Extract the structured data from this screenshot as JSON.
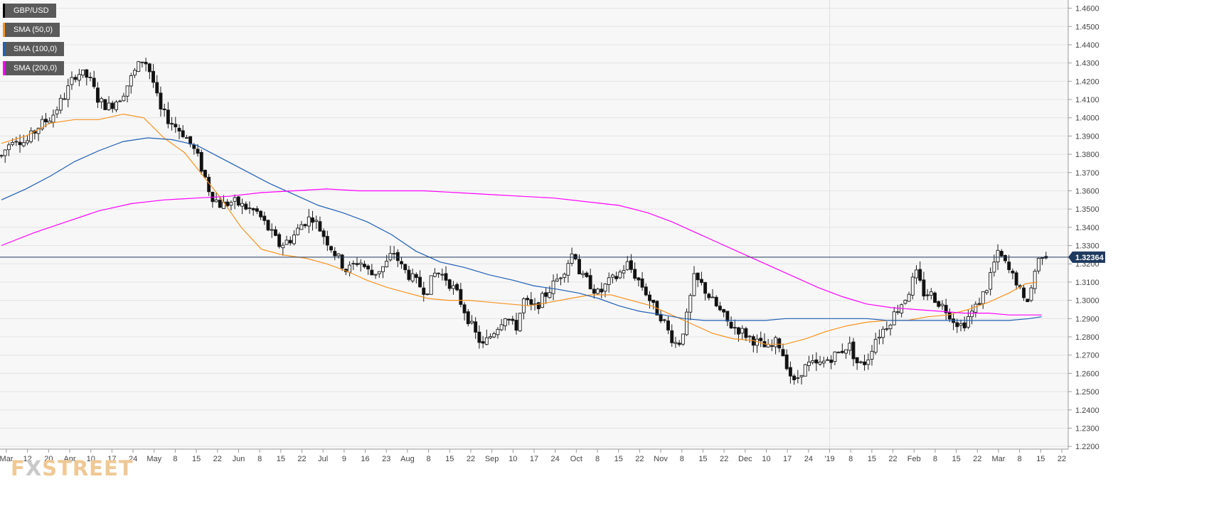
{
  "chart_data": {
    "type": "candlestick",
    "symbol": "GBP/USD",
    "ylim": [
      1.2185,
      1.4645
    ],
    "yticks": [
      "1.2200",
      "1.2300",
      "1.2400",
      "1.2500",
      "1.2600",
      "1.2700",
      "1.2800",
      "1.2900",
      "1.3000",
      "1.3100",
      "1.3200",
      "1.3300",
      "1.3400",
      "1.3500",
      "1.3600",
      "1.3700",
      "1.3800",
      "1.3900",
      "1.4000",
      "1.4100",
      "1.4200",
      "1.4300",
      "1.4400",
      "1.4500",
      "1.4600"
    ],
    "xticks": [
      "Mar",
      "12",
      "20",
      "Apr",
      "10",
      "17",
      "24",
      "May",
      "8",
      "15",
      "22",
      "Jun",
      "8",
      "15",
      "22",
      "Jul",
      "9",
      "16",
      "23",
      "Aug",
      "8",
      "15",
      "22",
      "Sep",
      "10",
      "17",
      "24",
      "Oct",
      "8",
      "15",
      "22",
      "Nov",
      "8",
      "15",
      "22",
      "Dec",
      "10",
      "17",
      "24",
      "'19",
      "8",
      "15",
      "22",
      "Feb",
      "8",
      "15",
      "22",
      "Mar",
      "8",
      "15",
      "22"
    ],
    "current_price": 1.32364,
    "current_price_label": "1.32364",
    "close_path": [
      [
        0,
        1.379
      ],
      [
        6,
        1.39
      ],
      [
        12,
        1.386
      ],
      [
        18,
        1.395
      ],
      [
        25,
        1.401
      ],
      [
        31,
        1.412
      ],
      [
        37,
        1.425
      ],
      [
        43,
        1.422
      ],
      [
        48,
        1.409
      ],
      [
        53,
        1.406
      ],
      [
        59,
        1.412
      ],
      [
        65,
        1.424
      ],
      [
        70,
        1.433
      ],
      [
        74,
        1.423
      ],
      [
        78,
        1.404
      ],
      [
        84,
        1.397
      ],
      [
        90,
        1.391
      ],
      [
        96,
        1.38
      ],
      [
        100,
        1.368
      ],
      [
        103,
        1.358
      ],
      [
        108,
        1.352
      ],
      [
        114,
        1.354
      ],
      [
        120,
        1.351
      ],
      [
        126,
        1.348
      ],
      [
        132,
        1.338
      ],
      [
        137,
        1.33
      ],
      [
        143,
        1.334
      ],
      [
        148,
        1.342
      ],
      [
        153,
        1.346
      ],
      [
        159,
        1.335
      ],
      [
        164,
        1.326
      ],
      [
        170,
        1.316
      ],
      [
        176,
        1.322
      ],
      [
        182,
        1.314
      ],
      [
        189,
        1.319
      ],
      [
        193,
        1.327
      ],
      [
        197,
        1.318
      ],
      [
        203,
        1.311
      ],
      [
        209,
        1.305
      ],
      [
        214,
        1.316
      ],
      [
        219,
        1.312
      ],
      [
        224,
        1.304
      ],
      [
        229,
        1.292
      ],
      [
        233,
        1.282
      ],
      [
        237,
        1.275
      ],
      [
        243,
        1.284
      ],
      [
        248,
        1.292
      ],
      [
        253,
        1.284
      ],
      [
        257,
        1.3
      ],
      [
        262,
        1.295
      ],
      [
        267,
        1.302
      ],
      [
        272,
        1.309
      ],
      [
        277,
        1.317
      ],
      [
        282,
        1.328
      ],
      [
        285,
        1.313
      ],
      [
        289,
        1.31
      ],
      [
        294,
        1.303
      ],
      [
        298,
        1.309
      ],
      [
        303,
        1.313
      ],
      [
        308,
        1.32
      ],
      [
        313,
        1.312
      ],
      [
        317,
        1.305
      ],
      [
        321,
        1.296
      ],
      [
        325,
        1.291
      ],
      [
        329,
        1.281
      ],
      [
        333,
        1.275
      ],
      [
        337,
        1.289
      ],
      [
        341,
        1.312
      ],
      [
        345,
        1.308
      ],
      [
        349,
        1.301
      ],
      [
        353,
        1.295
      ],
      [
        358,
        1.287
      ],
      [
        363,
        1.284
      ],
      [
        368,
        1.28
      ],
      [
        373,
        1.276
      ],
      [
        378,
        1.273
      ],
      [
        382,
        1.278
      ],
      [
        386,
        1.267
      ],
      [
        390,
        1.254
      ],
      [
        394,
        1.262
      ],
      [
        398,
        1.265
      ],
      [
        402,
        1.264
      ],
      [
        407,
        1.268
      ],
      [
        412,
        1.271
      ],
      [
        417,
        1.276
      ],
      [
        422,
        1.264
      ],
      [
        426,
        1.267
      ],
      [
        430,
        1.279
      ],
      [
        434,
        1.284
      ],
      [
        438,
        1.29
      ],
      [
        442,
        1.297
      ],
      [
        446,
        1.303
      ],
      [
        450,
        1.315
      ],
      [
        454,
        1.304
      ],
      [
        458,
        1.303
      ],
      [
        462,
        1.298
      ],
      [
        466,
        1.294
      ],
      [
        469,
        1.289
      ],
      [
        473,
        1.286
      ],
      [
        476,
        1.291
      ],
      [
        479,
        1.295
      ],
      [
        482,
        1.301
      ],
      [
        485,
        1.307
      ],
      [
        488,
        1.319
      ],
      [
        491,
        1.326
      ],
      [
        494,
        1.32
      ],
      [
        497,
        1.314
      ],
      [
        500,
        1.31
      ],
      [
        503,
        1.299
      ],
      [
        506,
        1.302
      ],
      [
        509,
        1.318
      ],
      [
        512,
        1.326
      ],
      [
        515,
        1.325
      ]
    ],
    "series": [
      {
        "name": "SMA (50,0)",
        "period": 50,
        "color": "#f7931e"
      },
      {
        "name": "SMA (100,0)",
        "period": 100,
        "color": "#1f5fb4"
      },
      {
        "name": "SMA (200,0)",
        "period": 200,
        "color": "#ff00ff"
      }
    ],
    "sma_paths": {
      "SMA (50,0)": [
        [
          0,
          1.386
        ],
        [
          12,
          1.39
        ],
        [
          24,
          1.397
        ],
        [
          36,
          1.399
        ],
        [
          48,
          1.399
        ],
        [
          60,
          1.402
        ],
        [
          70,
          1.4
        ],
        [
          80,
          1.389
        ],
        [
          90,
          1.381
        ],
        [
          98,
          1.37
        ],
        [
          108,
          1.356
        ],
        [
          118,
          1.34
        ],
        [
          128,
          1.328
        ],
        [
          138,
          1.325
        ],
        [
          150,
          1.323
        ],
        [
          160,
          1.32
        ],
        [
          170,
          1.316
        ],
        [
          180,
          1.311
        ],
        [
          190,
          1.307
        ],
        [
          200,
          1.304
        ],
        [
          210,
          1.301
        ],
        [
          220,
          1.3
        ],
        [
          230,
          1.3
        ],
        [
          240,
          1.299
        ],
        [
          250,
          1.298
        ],
        [
          260,
          1.297
        ],
        [
          270,
          1.299
        ],
        [
          280,
          1.301
        ],
        [
          290,
          1.303
        ],
        [
          300,
          1.303
        ],
        [
          310,
          1.3
        ],
        [
          320,
          1.297
        ],
        [
          330,
          1.292
        ],
        [
          340,
          1.287
        ],
        [
          350,
          1.282
        ],
        [
          360,
          1.279
        ],
        [
          370,
          1.278
        ],
        [
          376,
          1.276
        ],
        [
          386,
          1.276
        ],
        [
          396,
          1.279
        ],
        [
          406,
          1.283
        ],
        [
          416,
          1.286
        ],
        [
          426,
          1.288
        ],
        [
          436,
          1.289
        ],
        [
          446,
          1.289
        ],
        [
          456,
          1.291
        ],
        [
          466,
          1.292
        ],
        [
          476,
          1.295
        ],
        [
          486,
          1.299
        ],
        [
          496,
          1.304
        ],
        [
          504,
          1.309
        ],
        [
          510,
          1.31
        ]
      ],
      "SMA (100,0)": [
        [
          0,
          1.355
        ],
        [
          12,
          1.361
        ],
        [
          24,
          1.368
        ],
        [
          36,
          1.376
        ],
        [
          48,
          1.382
        ],
        [
          60,
          1.387
        ],
        [
          72,
          1.389
        ],
        [
          84,
          1.388
        ],
        [
          96,
          1.385
        ],
        [
          108,
          1.378
        ],
        [
          120,
          1.371
        ],
        [
          132,
          1.364
        ],
        [
          144,
          1.358
        ],
        [
          156,
          1.352
        ],
        [
          168,
          1.348
        ],
        [
          180,
          1.343
        ],
        [
          192,
          1.336
        ],
        [
          204,
          1.327
        ],
        [
          216,
          1.321
        ],
        [
          228,
          1.318
        ],
        [
          240,
          1.314
        ],
        [
          252,
          1.311
        ],
        [
          262,
          1.308
        ],
        [
          274,
          1.306
        ],
        [
          284,
          1.304
        ],
        [
          294,
          1.301
        ],
        [
          304,
          1.297
        ],
        [
          314,
          1.294
        ],
        [
          326,
          1.292
        ],
        [
          336,
          1.29
        ],
        [
          346,
          1.289
        ],
        [
          356,
          1.289
        ],
        [
          366,
          1.289
        ],
        [
          376,
          1.289
        ],
        [
          386,
          1.29
        ],
        [
          396,
          1.29
        ],
        [
          406,
          1.29
        ],
        [
          416,
          1.29
        ],
        [
          426,
          1.29
        ],
        [
          436,
          1.289
        ],
        [
          446,
          1.289
        ],
        [
          456,
          1.289
        ],
        [
          466,
          1.289
        ],
        [
          476,
          1.289
        ],
        [
          486,
          1.289
        ],
        [
          496,
          1.289
        ],
        [
          506,
          1.29
        ],
        [
          512,
          1.291
        ]
      ],
      "SMA (200,0)": [
        [
          0,
          1.33
        ],
        [
          16,
          1.337
        ],
        [
          32,
          1.343
        ],
        [
          48,
          1.349
        ],
        [
          64,
          1.353
        ],
        [
          80,
          1.355
        ],
        [
          96,
          1.356
        ],
        [
          112,
          1.357
        ],
        [
          128,
          1.359
        ],
        [
          144,
          1.36
        ],
        [
          160,
          1.361
        ],
        [
          176,
          1.36
        ],
        [
          192,
          1.36
        ],
        [
          208,
          1.36
        ],
        [
          224,
          1.359
        ],
        [
          240,
          1.358
        ],
        [
          256,
          1.357
        ],
        [
          272,
          1.356
        ],
        [
          288,
          1.354
        ],
        [
          304,
          1.352
        ],
        [
          318,
          1.348
        ],
        [
          330,
          1.343
        ],
        [
          342,
          1.337
        ],
        [
          354,
          1.331
        ],
        [
          366,
          1.325
        ],
        [
          378,
          1.319
        ],
        [
          390,
          1.313
        ],
        [
          402,
          1.307
        ],
        [
          414,
          1.302
        ],
        [
          426,
          1.298
        ],
        [
          438,
          1.296
        ],
        [
          450,
          1.295
        ],
        [
          462,
          1.294
        ],
        [
          474,
          1.293
        ],
        [
          486,
          1.293
        ],
        [
          496,
          1.292
        ],
        [
          506,
          1.292
        ],
        [
          512,
          1.292
        ]
      ]
    },
    "grid": true,
    "legend_position": "top-left",
    "price_axis_position": "right"
  },
  "legend": [
    "GBP/USD",
    "SMA (50,0)",
    "SMA (100,0)",
    "SMA (200,0)"
  ],
  "legend_colors": [
    "#000000",
    "#f7931e",
    "#1f5fb4",
    "#ff00ff"
  ],
  "logo": {
    "part1": "F",
    "part2": "X",
    "part3": "STREET"
  }
}
